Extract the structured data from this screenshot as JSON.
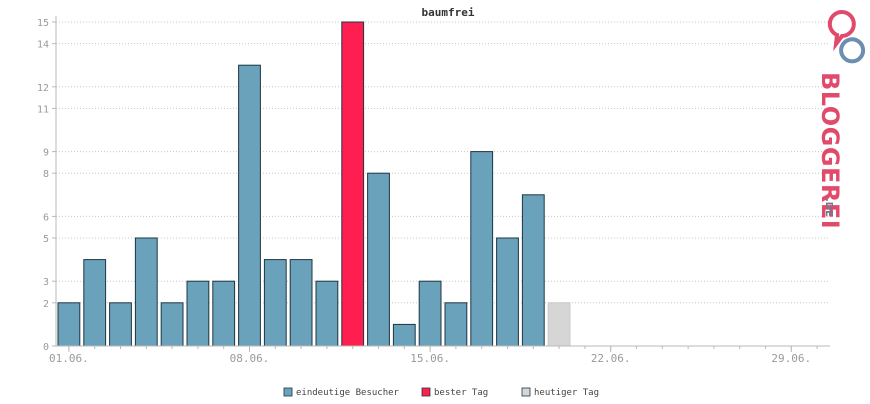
{
  "chart_data": {
    "type": "bar",
    "title": "baumfrei",
    "xlabel": "",
    "ylabel": "",
    "ylim": [
      0,
      15
    ],
    "y_ticks": [
      0,
      2,
      3,
      5,
      6,
      8,
      9,
      11,
      12,
      14,
      15
    ],
    "x_tick_labels": [
      {
        "day": 1,
        "label": "01.06."
      },
      {
        "day": 8,
        "label": "08.06."
      },
      {
        "day": 15,
        "label": "15.06."
      },
      {
        "day": 22,
        "label": "22.06."
      },
      {
        "day": 29,
        "label": "29.06."
      }
    ],
    "days_in_range": 30,
    "grid": true,
    "legend_position": "bottom",
    "series": [
      {
        "name": "eindeutige Besucher",
        "color": "#6aa2bb",
        "values": [
          2,
          4,
          2,
          5,
          2,
          3,
          3,
          13,
          4,
          4,
          3,
          null,
          8,
          1,
          3,
          2,
          9,
          5,
          7,
          null
        ]
      },
      {
        "name": "bester Tag",
        "color": "#ff1e50",
        "values": [
          null,
          null,
          null,
          null,
          null,
          null,
          null,
          null,
          null,
          null,
          null,
          15,
          null,
          null,
          null,
          null,
          null,
          null,
          null,
          null
        ]
      },
      {
        "name": "heutiger Tag",
        "color": "#d6d6d6",
        "values": [
          null,
          null,
          null,
          null,
          null,
          null,
          null,
          null,
          null,
          null,
          null,
          null,
          null,
          null,
          null,
          null,
          null,
          null,
          null,
          2
        ]
      }
    ]
  },
  "logo": {
    "text": "BLOGGEREI",
    "suffix": ".DE",
    "colors": {
      "pink": "#e24a6b",
      "blue": "#6a8fb1",
      "gray": "#6f7c8f"
    }
  },
  "colors": {
    "axis": "#b9b9b9",
    "grid": "#c8c8c8",
    "tick_text": "#9a9a9a",
    "title_text": "#333333",
    "bar_stroke": "#1f3542"
  }
}
